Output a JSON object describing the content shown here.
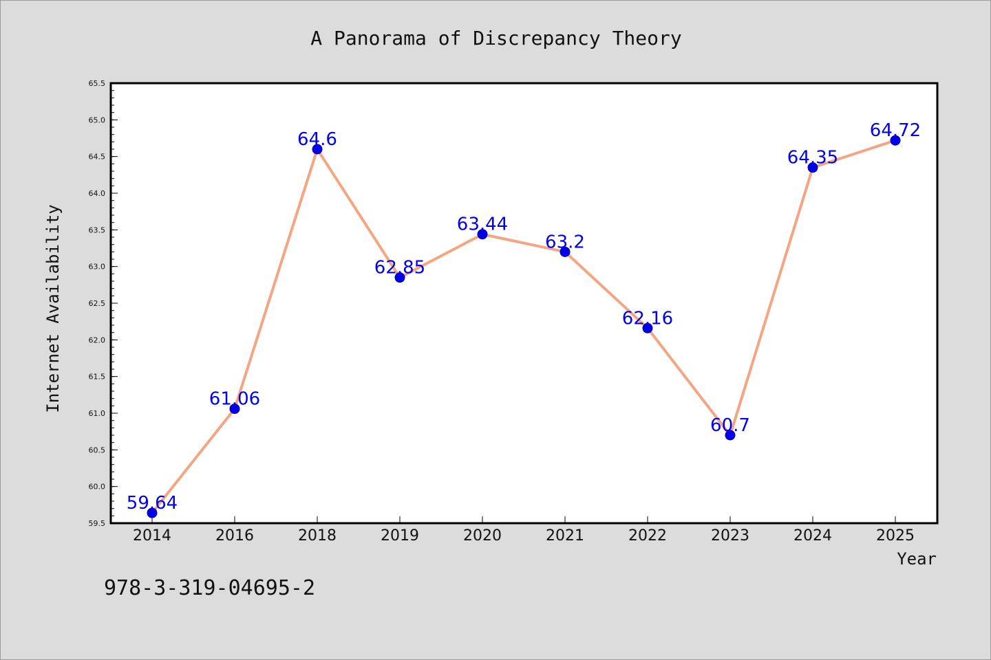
{
  "chart_data": {
    "type": "line",
    "title": "A Panorama of Discrepancy Theory",
    "xlabel": "Year",
    "ylabel": "Internet Availability",
    "categories": [
      "2014",
      "2016",
      "2018",
      "2019",
      "2020",
      "2021",
      "2022",
      "2023",
      "2024",
      "2025"
    ],
    "series": [
      {
        "values": [
          59.64,
          61.06,
          64.6,
          62.85,
          63.44,
          63.2,
          62.16,
          60.7,
          64.35,
          64.72
        ],
        "data_labels": [
          "59.64",
          "61.06",
          "64.6",
          "62.85",
          "63.44",
          "63.2",
          "62.16",
          "60.7",
          "64.35",
          "64.72"
        ]
      }
    ],
    "ylim": [
      59.5,
      65.5
    ],
    "yticks": [
      "59.5",
      "60.0",
      "60.5",
      "61.0",
      "61.5",
      "62.0",
      "62.5",
      "63.0",
      "63.5",
      "64.0",
      "64.5",
      "65.0",
      "65.5"
    ],
    "grid": false,
    "legend": "none",
    "colors": {
      "line": "#f4a582",
      "marker": "#0000ee",
      "data_label": "#0000ee",
      "background": "#dcdcdc",
      "plot_area": "#ffffff"
    }
  },
  "footer_text": "978-3-319-04695-2"
}
